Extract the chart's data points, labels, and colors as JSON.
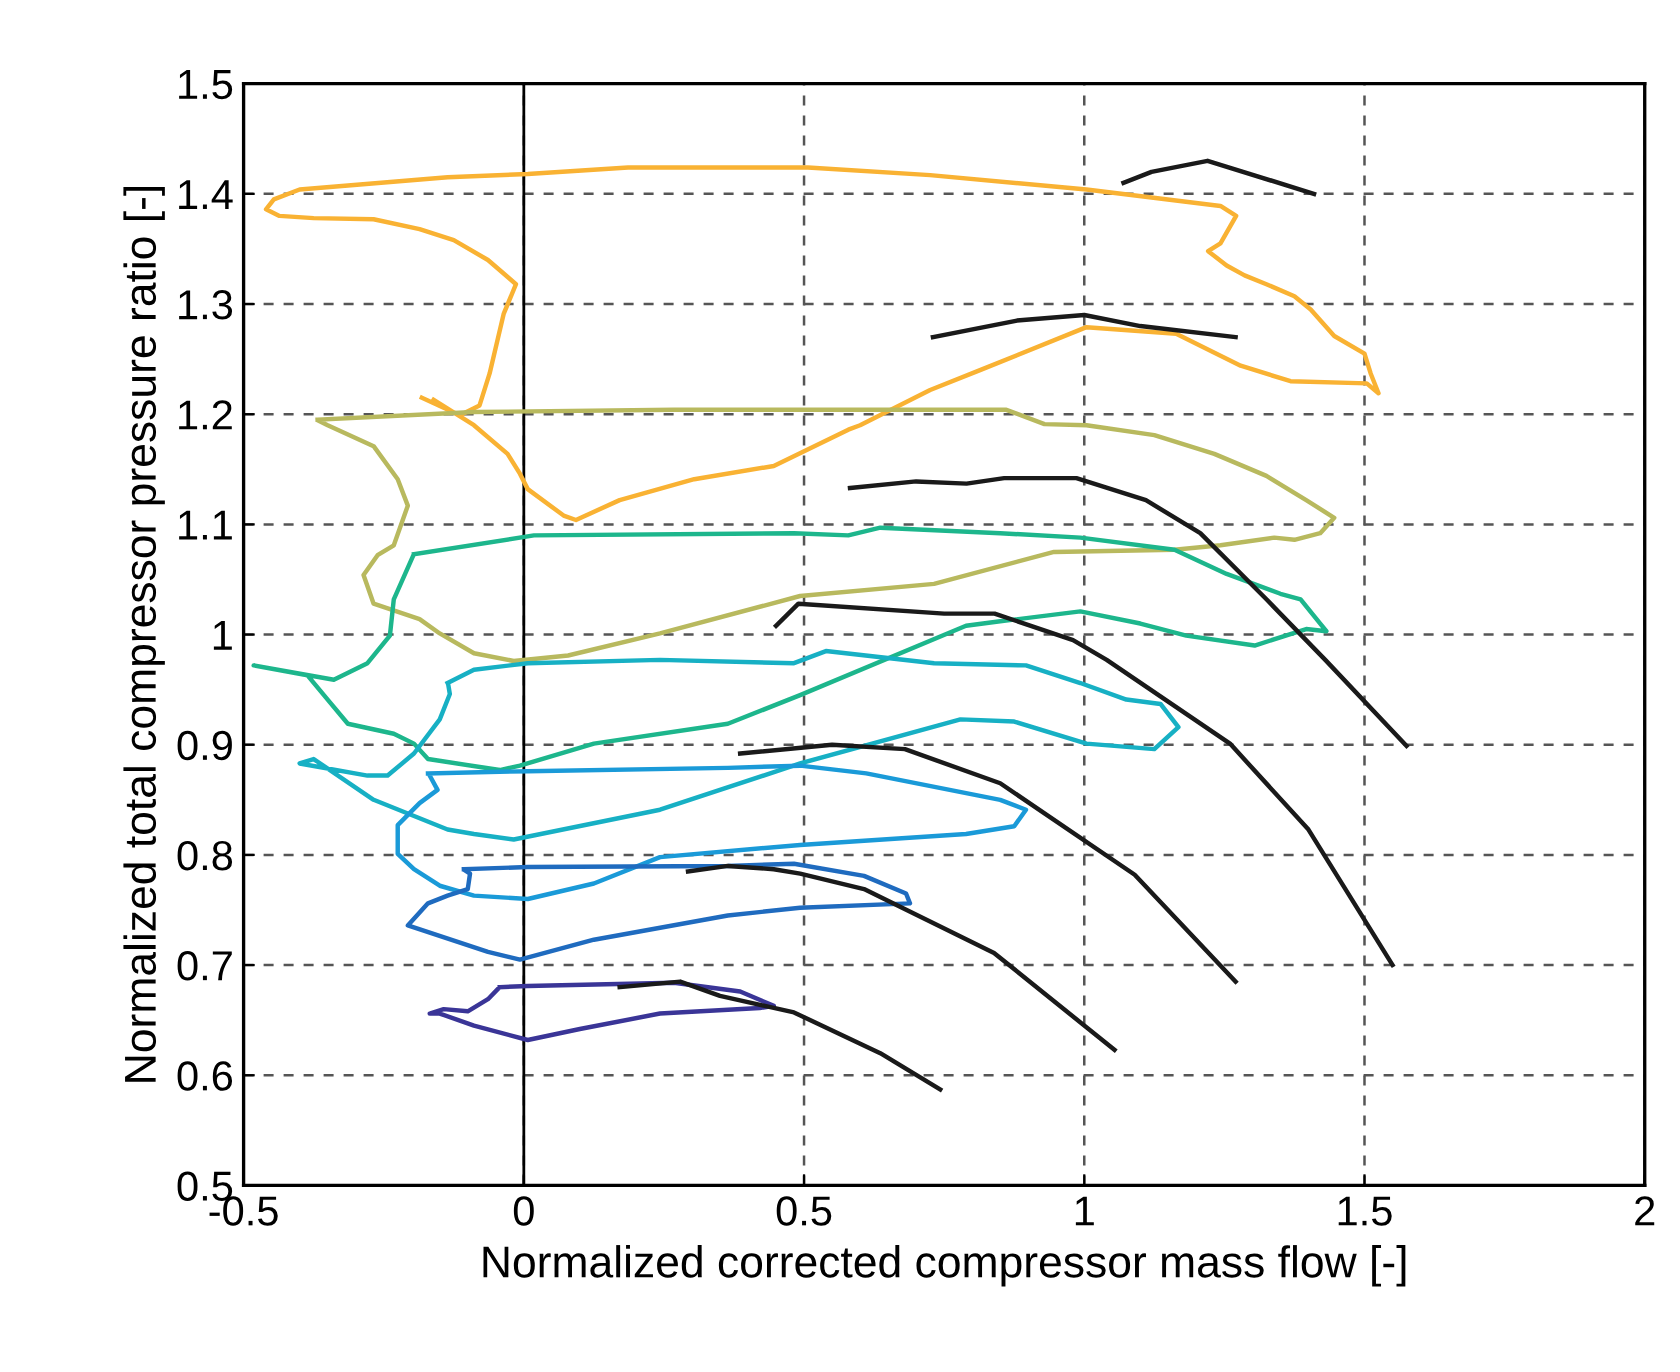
{
  "chart_data": {
    "type": "line",
    "xlabel": "Normalized corrected compressor mass flow [-]",
    "ylabel": "Normalized total compressor pressure ratio [-]",
    "xlim": [
      -0.5,
      2
    ],
    "ylim": [
      0.5,
      1.5
    ],
    "xticks": [
      {
        "value": -0.5,
        "label": "-0.5"
      },
      0,
      0.5,
      1,
      1.5,
      2
    ],
    "yticks": [
      0.5,
      0.6,
      0.7,
      0.8,
      0.9,
      1,
      1.1,
      1.2,
      1.3,
      1.4,
      1.5
    ],
    "grid": true,
    "line_style": "solid",
    "marker": "none",
    "ref_lines": [
      {
        "axis": "x",
        "value": 0,
        "color": "#000000",
        "line_style": "solid"
      }
    ],
    "series": [
      {
        "color": "#f9b233",
        "x": [
          -0.182,
          -0.114,
          -0.079,
          -0.061,
          -0.036,
          -0.014,
          -0.064,
          -0.125,
          -0.186,
          -0.268,
          -0.375,
          -0.436,
          -0.46,
          -0.446,
          -0.4,
          -0.136,
          0.007,
          0.186,
          0.507,
          0.725,
          1.004,
          1.243,
          1.271,
          1.243,
          1.221,
          1.254,
          1.286,
          1.325,
          1.375,
          1.404,
          1.446,
          1.5,
          1.511,
          1.525,
          1.504,
          1.368,
          1.279,
          1.164,
          1.004,
          0.814,
          0.725,
          0.6,
          0.579,
          0.446,
          0.304,
          0.171,
          0.093,
          0.071,
          0.007,
          -0.007,
          -0.029,
          -0.089,
          -0.161
        ],
        "values": [
          1.215,
          1.199,
          1.208,
          1.237,
          1.291,
          1.318,
          1.34,
          1.358,
          1.368,
          1.377,
          1.378,
          1.38,
          1.386,
          1.395,
          1.404,
          1.415,
          1.418,
          1.424,
          1.424,
          1.417,
          1.404,
          1.389,
          1.38,
          1.355,
          1.348,
          1.335,
          1.326,
          1.318,
          1.307,
          1.295,
          1.271,
          1.255,
          1.237,
          1.219,
          1.228,
          1.23,
          1.244,
          1.273,
          1.279,
          1.24,
          1.222,
          1.19,
          1.186,
          1.153,
          1.141,
          1.122,
          1.104,
          1.108,
          1.132,
          1.146,
          1.164,
          1.19,
          1.213
        ]
      },
      {
        "color": "#b8b95e",
        "x": [
          -0.368,
          -0.089,
          0.268,
          0.493,
          0.861,
          0.929,
          1.004,
          1.125,
          1.232,
          1.325,
          1.396,
          1.446,
          1.421,
          1.375,
          1.339,
          1.243,
          1.161,
          0.946,
          0.732,
          0.493,
          0.243,
          0.079,
          -0.018,
          -0.089,
          -0.15,
          -0.186,
          -0.268,
          -0.286,
          -0.261,
          -0.232,
          -0.207,
          -0.225,
          -0.268,
          -0.35,
          -0.366
        ],
        "values": [
          1.195,
          1.202,
          1.204,
          1.204,
          1.204,
          1.191,
          1.19,
          1.181,
          1.164,
          1.144,
          1.122,
          1.106,
          1.092,
          1.086,
          1.088,
          1.081,
          1.077,
          1.075,
          1.046,
          1.035,
          1.001,
          0.981,
          0.976,
          0.983,
          1.001,
          1.014,
          1.028,
          1.054,
          1.072,
          1.081,
          1.117,
          1.141,
          1.171,
          1.19,
          1.194
        ]
      },
      {
        "color": "#1db68c",
        "x": [
          -0.196,
          0.018,
          0.482,
          0.579,
          0.636,
          0.85,
          0.993,
          1.161,
          1.254,
          1.35,
          1.386,
          1.421,
          1.432,
          1.396,
          1.304,
          1.182,
          1.1,
          0.993,
          0.85,
          0.789,
          0.493,
          0.364,
          0.125,
          -0.007,
          -0.043,
          -0.171,
          -0.196,
          -0.232,
          -0.314,
          -0.35,
          -0.386,
          -0.482,
          -0.339,
          -0.279,
          -0.239,
          -0.232,
          -0.198
        ],
        "values": [
          1.073,
          1.09,
          1.092,
          1.09,
          1.097,
          1.092,
          1.088,
          1.077,
          1.055,
          1.037,
          1.032,
          1.01,
          1.003,
          1.005,
          0.99,
          0.999,
          1.01,
          1.021,
          1.012,
          1.008,
          0.945,
          0.919,
          0.901,
          0.881,
          0.877,
          0.887,
          0.901,
          0.91,
          0.919,
          0.941,
          0.963,
          0.972,
          0.959,
          0.974,
          0.999,
          1.032,
          1.071
        ]
      },
      {
        "color": "#17b0c4",
        "x": [
          -0.136,
          -0.089,
          0.007,
          0.243,
          0.482,
          0.539,
          0.732,
          0.896,
          0.993,
          1.075,
          1.136,
          1.168,
          1.125,
          1.004,
          0.875,
          0.779,
          0.493,
          0.243,
          -0.018,
          -0.089,
          -0.136,
          -0.268,
          -0.375,
          -0.4,
          -0.279,
          -0.243,
          -0.196,
          -0.15,
          -0.132,
          -0.135
        ],
        "values": [
          0.956,
          0.968,
          0.974,
          0.977,
          0.974,
          0.985,
          0.974,
          0.972,
          0.956,
          0.941,
          0.937,
          0.916,
          0.896,
          0.901,
          0.921,
          0.923,
          0.883,
          0.841,
          0.814,
          0.819,
          0.823,
          0.85,
          0.887,
          0.883,
          0.872,
          0.872,
          0.892,
          0.923,
          0.946,
          0.955
        ]
      },
      {
        "color": "#1a9ad8",
        "x": [
          -0.171,
          0.007,
          0.364,
          0.493,
          0.611,
          0.85,
          0.896,
          0.875,
          0.789,
          0.493,
          0.243,
          0.125,
          0.007,
          -0.089,
          -0.15,
          -0.196,
          -0.225,
          -0.225,
          -0.186,
          -0.154,
          -0.169
        ],
        "values": [
          0.874,
          0.876,
          0.879,
          0.881,
          0.874,
          0.85,
          0.841,
          0.826,
          0.819,
          0.809,
          0.798,
          0.774,
          0.76,
          0.763,
          0.772,
          0.787,
          0.801,
          0.827,
          0.847,
          0.859,
          0.873
        ]
      },
      {
        "color": "#1f6bbf",
        "x": [
          -0.107,
          0.007,
          0.364,
          0.482,
          0.607,
          0.682,
          0.689,
          0.493,
          0.364,
          0.125,
          -0.007,
          -0.064,
          -0.207,
          -0.171,
          -0.136,
          -0.1,
          -0.096,
          -0.105
        ],
        "values": [
          0.787,
          0.789,
          0.79,
          0.792,
          0.781,
          0.765,
          0.756,
          0.752,
          0.745,
          0.723,
          0.705,
          0.712,
          0.736,
          0.756,
          0.763,
          0.769,
          0.783,
          0.786
        ]
      },
      {
        "color": "#3a3597",
        "x": [
          -0.043,
          0.007,
          0.268,
          0.386,
          0.446,
          0.421,
          0.243,
          0.1,
          0.007,
          -0.089,
          -0.15,
          -0.168,
          -0.143,
          -0.1,
          -0.064,
          -0.045
        ],
        "values": [
          0.68,
          0.681,
          0.684,
          0.676,
          0.663,
          0.661,
          0.656,
          0.642,
          0.632,
          0.645,
          0.656,
          0.656,
          0.66,
          0.658,
          0.669,
          0.679
        ]
      },
      {
        "color": "#1a1a1a",
        "x": [
          1.07,
          1.12,
          1.22,
          1.41
        ],
        "values": [
          1.41,
          1.42,
          1.43,
          1.4
        ]
      },
      {
        "color": "#1a1a1a",
        "x": [
          0.73,
          0.88,
          1.0,
          1.1,
          1.27
        ],
        "values": [
          1.27,
          1.285,
          1.29,
          1.28,
          1.27
        ]
      },
      {
        "color": "#1a1a1a",
        "x": [
          0.582,
          0.7,
          0.79,
          0.857,
          0.986,
          1.11,
          1.207,
          1.325,
          1.43,
          1.575
        ],
        "values": [
          1.133,
          1.139,
          1.137,
          1.142,
          1.142,
          1.122,
          1.092,
          1.032,
          0.977,
          0.899
        ]
      },
      {
        "color": "#1a1a1a",
        "x": [
          0.45,
          0.49,
          0.75,
          0.84,
          0.98,
          1.04,
          1.26,
          1.4,
          1.55
        ],
        "values": [
          1.008,
          1.028,
          1.019,
          1.019,
          0.995,
          0.977,
          0.901,
          0.823,
          0.7
        ]
      },
      {
        "color": "#1a1a1a",
        "x": [
          0.386,
          0.55,
          0.68,
          0.85,
          1.09,
          1.27
        ],
        "values": [
          0.892,
          0.9,
          0.896,
          0.865,
          0.782,
          0.685
        ]
      },
      {
        "color": "#1a1a1a",
        "x": [
          0.293,
          0.364,
          0.446,
          0.493,
          0.607,
          0.839,
          1.054
        ],
        "values": [
          0.785,
          0.79,
          0.787,
          0.783,
          0.769,
          0.711,
          0.623
        ]
      },
      {
        "color": "#1a1a1a",
        "x": [
          0.171,
          0.279,
          0.35,
          0.482,
          0.636,
          0.743
        ],
        "values": [
          0.68,
          0.685,
          0.672,
          0.657,
          0.62,
          0.587
        ]
      }
    ]
  }
}
